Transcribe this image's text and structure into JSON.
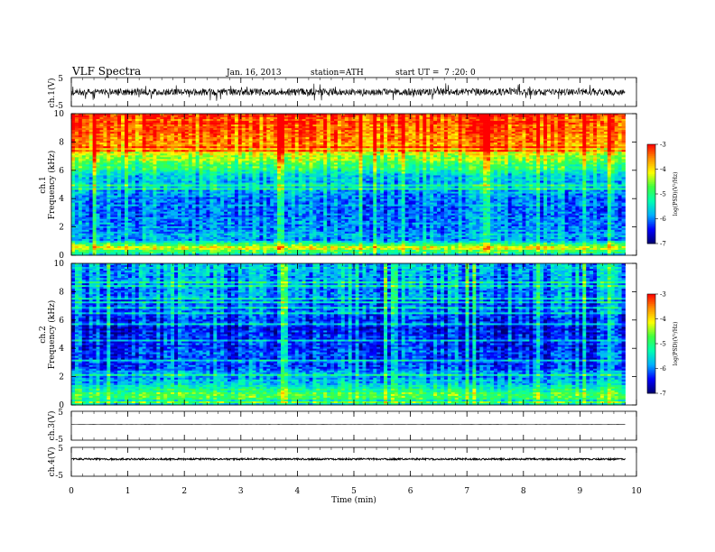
{
  "header": {
    "title": "VLF Spectra",
    "date": "Jan. 16, 2013",
    "station": "station=ATH",
    "start": "start UT =  7 :20: 0"
  },
  "colors": {
    "spectrum": [
      "#000070",
      "#0000ff",
      "#00b0ff",
      "#00ffb0",
      "#40ff40",
      "#ffff00",
      "#ff9000",
      "#ff0000"
    ]
  },
  "chart_data": [
    {
      "type": "line",
      "name": "ch1-waveform",
      "ylabel": "ch.1(V)",
      "ylim": [
        -5,
        5
      ],
      "yticks": [
        "5",
        "-5"
      ],
      "x_range_min": [
        0,
        9.8
      ],
      "amplitude_v": 1.2
    },
    {
      "type": "heatmap",
      "name": "ch1-spectrogram",
      "ylabel_line1": "ch.1",
      "ylabel_line2": "Frequency (kHz)",
      "ylim": [
        0,
        10
      ],
      "yticks": [
        "0",
        "2",
        "4",
        "6",
        "8",
        "10"
      ],
      "x_range_min": [
        0,
        9.8
      ],
      "colorbar": {
        "label": "log(PSD)(V²/Hz)",
        "range": [
          -7,
          -3
        ],
        "ticks": [
          "-3",
          "-4",
          "-5",
          "-6",
          "-7"
        ]
      },
      "psd_profile": [
        {
          "f": 0.0,
          "v": -6.6
        },
        {
          "f": 0.5,
          "v": -4.0
        },
        {
          "f": 1.0,
          "v": -5.8
        },
        {
          "f": 2.0,
          "v": -6.0
        },
        {
          "f": 4.0,
          "v": -6.0
        },
        {
          "f": 5.5,
          "v": -5.6
        },
        {
          "f": 6.5,
          "v": -4.7
        },
        {
          "f": 8.0,
          "v": -3.6
        },
        {
          "f": 10.0,
          "v": -3.2
        }
      ]
    },
    {
      "type": "heatmap",
      "name": "ch2-spectrogram",
      "ylabel_line1": "ch.2",
      "ylabel_line2": "Frequency (kHz)",
      "ylim": [
        0,
        10
      ],
      "yticks": [
        "0",
        "2",
        "4",
        "6",
        "8",
        "10"
      ],
      "x_range_min": [
        0,
        9.8
      ],
      "colorbar": {
        "label": "log(PSD)(V²/Hz)",
        "range": [
          -7,
          -3
        ],
        "ticks": [
          "-3",
          "-4",
          "-5",
          "-6",
          "-7"
        ]
      },
      "psd_profile": [
        {
          "f": 0.0,
          "v": -5.5
        },
        {
          "f": 0.7,
          "v": -4.8
        },
        {
          "f": 1.5,
          "v": -5.6
        },
        {
          "f": 3.0,
          "v": -6.2
        },
        {
          "f": 5.0,
          "v": -6.4
        },
        {
          "f": 7.0,
          "v": -6.1
        },
        {
          "f": 9.0,
          "v": -5.8
        },
        {
          "f": 10.0,
          "v": -5.6
        }
      ]
    },
    {
      "type": "line",
      "name": "ch3-waveform",
      "ylabel": "ch.3(V)",
      "ylim": [
        -5,
        5
      ],
      "yticks": [
        "5",
        "-5"
      ],
      "x_range_min": [
        0,
        9.8
      ],
      "amplitude_v": 0.05
    },
    {
      "type": "line",
      "name": "ch4-waveform",
      "ylabel": "ch.4(V)",
      "ylim": [
        -5,
        5
      ],
      "yticks": [
        "5",
        "-5"
      ],
      "x_range_min": [
        0,
        9.8
      ],
      "amplitude_v": 0.3
    }
  ],
  "xaxis": {
    "label": "Time (min)",
    "xlim": [
      0,
      10
    ],
    "ticks": [
      "0",
      "1",
      "2",
      "3",
      "4",
      "5",
      "6",
      "7",
      "8",
      "9",
      "10"
    ]
  }
}
